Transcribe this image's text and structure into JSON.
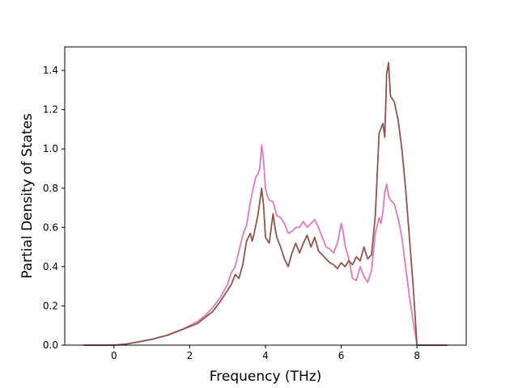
{
  "chart_data": {
    "type": "line",
    "title": "",
    "xlabel": "Frequency (THz)",
    "ylabel": "Partial Density of States",
    "xlim": [
      -1.3,
      9.3
    ],
    "ylim": [
      0.0,
      1.52
    ],
    "xticks": [
      0,
      2,
      4,
      6,
      8
    ],
    "yticks": [
      0.0,
      0.2,
      0.4,
      0.6,
      0.8,
      1.0,
      1.2,
      1.4
    ],
    "grid": false,
    "legend": "none",
    "series": [
      {
        "color": "#e377c2",
        "x": [
          -0.8,
          0.0,
          0.3,
          0.6,
          1.0,
          1.4,
          1.8,
          2.2,
          2.4,
          2.6,
          2.8,
          3.0,
          3.1,
          3.2,
          3.3,
          3.4,
          3.5,
          3.6,
          3.7,
          3.75,
          3.8,
          3.85,
          3.9,
          3.95,
          4.0,
          4.05,
          4.1,
          4.2,
          4.3,
          4.4,
          4.5,
          4.6,
          4.7,
          4.8,
          4.9,
          5.0,
          5.1,
          5.2,
          5.3,
          5.4,
          5.5,
          5.6,
          5.7,
          5.8,
          5.9,
          6.0,
          6.05,
          6.1,
          6.2,
          6.3,
          6.4,
          6.5,
          6.6,
          6.7,
          6.8,
          6.9,
          7.0,
          7.05,
          7.1,
          7.15,
          7.2,
          7.25,
          7.3,
          7.4,
          7.5,
          7.6,
          7.7,
          7.8,
          7.9,
          8.0,
          8.4,
          8.8
        ],
        "values": [
          0.0,
          0.0,
          0.005,
          0.015,
          0.03,
          0.05,
          0.08,
          0.12,
          0.15,
          0.19,
          0.24,
          0.31,
          0.37,
          0.4,
          0.48,
          0.56,
          0.61,
          0.73,
          0.82,
          0.86,
          0.87,
          0.9,
          1.02,
          0.94,
          0.8,
          0.76,
          0.74,
          0.73,
          0.66,
          0.65,
          0.62,
          0.57,
          0.58,
          0.6,
          0.6,
          0.63,
          0.6,
          0.62,
          0.64,
          0.6,
          0.55,
          0.5,
          0.49,
          0.47,
          0.52,
          0.62,
          0.58,
          0.51,
          0.44,
          0.34,
          0.33,
          0.4,
          0.35,
          0.32,
          0.38,
          0.57,
          0.65,
          0.62,
          0.68,
          0.78,
          0.82,
          0.76,
          0.74,
          0.72,
          0.65,
          0.55,
          0.4,
          0.25,
          0.12,
          0.0,
          0.0,
          0.0
        ]
      },
      {
        "color": "#8c564b",
        "x": [
          -0.8,
          0.0,
          0.3,
          0.6,
          1.0,
          1.4,
          1.8,
          2.2,
          2.4,
          2.6,
          2.8,
          3.0,
          3.1,
          3.2,
          3.3,
          3.4,
          3.5,
          3.6,
          3.65,
          3.7,
          3.8,
          3.9,
          3.95,
          4.0,
          4.1,
          4.2,
          4.25,
          4.3,
          4.4,
          4.5,
          4.6,
          4.7,
          4.8,
          4.9,
          5.0,
          5.1,
          5.2,
          5.3,
          5.4,
          5.5,
          5.6,
          5.7,
          5.8,
          5.9,
          6.0,
          6.1,
          6.2,
          6.3,
          6.4,
          6.5,
          6.6,
          6.7,
          6.8,
          6.9,
          7.0,
          7.1,
          7.15,
          7.2,
          7.25,
          7.3,
          7.4,
          7.5,
          7.6,
          7.7,
          7.8,
          7.9,
          8.0,
          8.4,
          8.8
        ],
        "values": [
          0.0,
          0.0,
          0.005,
          0.015,
          0.03,
          0.05,
          0.08,
          0.11,
          0.14,
          0.17,
          0.22,
          0.28,
          0.31,
          0.36,
          0.34,
          0.41,
          0.53,
          0.57,
          0.53,
          0.57,
          0.66,
          0.8,
          0.71,
          0.55,
          0.52,
          0.67,
          0.6,
          0.55,
          0.5,
          0.44,
          0.4,
          0.47,
          0.52,
          0.47,
          0.52,
          0.56,
          0.5,
          0.55,
          0.48,
          0.46,
          0.44,
          0.42,
          0.41,
          0.39,
          0.42,
          0.4,
          0.43,
          0.41,
          0.45,
          0.43,
          0.5,
          0.44,
          0.46,
          0.66,
          1.08,
          1.13,
          1.06,
          1.38,
          1.44,
          1.27,
          1.24,
          1.15,
          1.0,
          0.8,
          0.55,
          0.3,
          0.0,
          0.0,
          0.0
        ]
      }
    ]
  }
}
